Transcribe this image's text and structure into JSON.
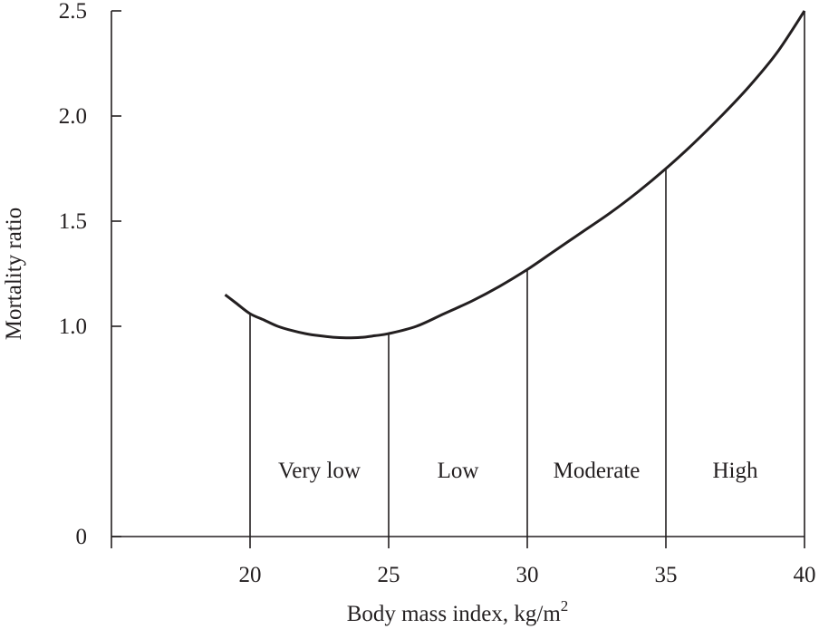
{
  "chart_data": {
    "type": "line",
    "title": "",
    "xlabel": "Body mass index, kg/m",
    "xlabel_superscript": "2",
    "ylabel": "Mortality ratio",
    "xlim": [
      15,
      40
    ],
    "ylim": [
      0,
      2.5
    ],
    "x_ticks": [
      15,
      20,
      25,
      30,
      35,
      40
    ],
    "x_tick_labels": [
      "",
      "20",
      "25",
      "30",
      "35",
      "40"
    ],
    "y_ticks": [
      0,
      1.0,
      1.5,
      2.0,
      2.5
    ],
    "y_tick_labels": [
      "0",
      "1.0",
      "1.5",
      "2.0",
      "2.5"
    ],
    "grid": false,
    "series": [
      {
        "name": "Mortality ratio",
        "x": [
          19.1,
          19.5,
          20,
          20.5,
          21,
          21.5,
          22,
          22.5,
          23,
          23.5,
          24,
          24.5,
          25,
          26,
          27,
          28,
          29,
          30,
          31,
          32,
          33,
          34,
          35,
          36,
          37,
          38,
          39,
          40
        ],
        "y": [
          1.15,
          1.11,
          1.06,
          1.03,
          1.0,
          0.98,
          0.965,
          0.955,
          0.948,
          0.945,
          0.947,
          0.955,
          0.965,
          1.0,
          1.06,
          1.12,
          1.19,
          1.27,
          1.36,
          1.45,
          1.54,
          1.64,
          1.75,
          1.87,
          2.0,
          2.14,
          2.3,
          2.5
        ]
      }
    ],
    "zones": [
      {
        "label": "Very low",
        "x_start": 20,
        "x_end": 25
      },
      {
        "label": "Low",
        "x_start": 25,
        "x_end": 30
      },
      {
        "label": "Moderate",
        "x_start": 30,
        "x_end": 35
      },
      {
        "label": "High",
        "x_start": 35,
        "x_end": 40
      }
    ]
  }
}
